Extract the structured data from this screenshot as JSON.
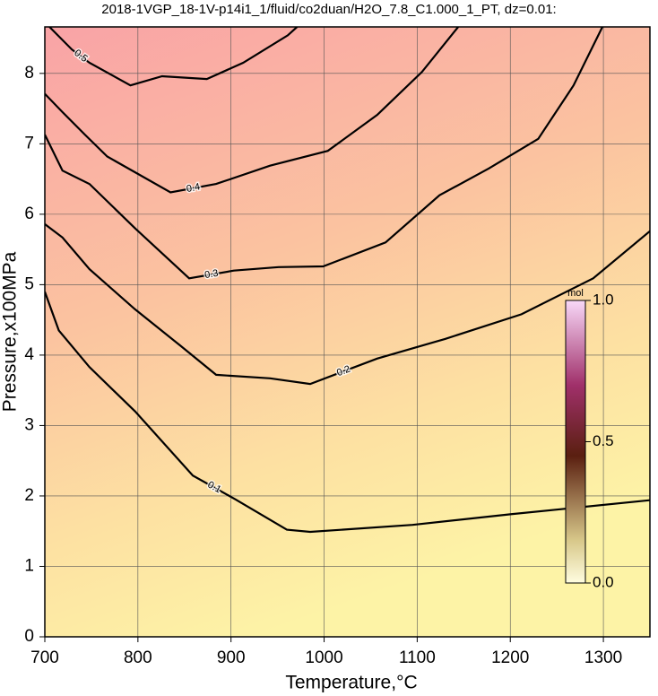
{
  "chart_data": {
    "type": "contour",
    "title": "2018-1VGP_18-1V-p14i1_1/fluid/co2duan/H2O_7.8_C1.000_1_PT, dz=0.01:",
    "x_label": "Temperature,°C",
    "y_label": "Pressure,x100MPa",
    "xlim": [
      700,
      1350
    ],
    "ylim": [
      0,
      8.66
    ],
    "xticks": [
      700,
      800,
      900,
      1000,
      1100,
      1200,
      1300
    ],
    "yticks": [
      0,
      1,
      2,
      3,
      4,
      5,
      6,
      7,
      8
    ],
    "grid": true,
    "contours": [
      {
        "level": 0.1,
        "x": [
          700,
          715,
          748,
          797,
          859,
          905,
          960,
          985,
          1095,
          1200,
          1350
        ],
        "y": [
          4.9,
          4.35,
          3.83,
          3.2,
          2.29,
          1.95,
          1.52,
          1.49,
          1.59,
          1.74,
          1.94
        ]
      },
      {
        "level": 0.2,
        "x": [
          700,
          719,
          748,
          797,
          845,
          884,
          942,
          985,
          1057,
          1130,
          1212,
          1289,
          1350
        ],
        "y": [
          5.86,
          5.67,
          5.22,
          4.65,
          4.14,
          3.72,
          3.67,
          3.59,
          3.95,
          4.23,
          4.58,
          5.09,
          5.76
        ]
      },
      {
        "level": 0.3,
        "x": [
          700,
          719,
          748,
          797,
          855,
          903,
          951,
          999,
          1066,
          1124,
          1177,
          1230,
          1268,
          1299
        ],
        "y": [
          7.13,
          6.62,
          6.43,
          5.8,
          5.09,
          5.2,
          5.25,
          5.26,
          5.6,
          6.27,
          6.65,
          7.07,
          7.83,
          8.66
        ]
      },
      {
        "level": 0.4,
        "x": [
          700,
          719,
          743,
          767,
          835,
          884,
          942,
          1004,
          1057,
          1105,
          1144
        ],
        "y": [
          7.71,
          7.45,
          7.13,
          6.82,
          6.31,
          6.43,
          6.69,
          6.9,
          7.41,
          8.02,
          8.66
        ]
      },
      {
        "level": 0.5,
        "x": [
          705,
          729,
          748,
          792,
          826,
          874,
          913,
          961,
          971
        ],
        "y": [
          8.66,
          8.34,
          8.15,
          7.83,
          7.96,
          7.92,
          8.15,
          8.54,
          8.66
        ]
      }
    ],
    "colorbar": {
      "label": "mol",
      "lim": [
        0,
        1
      ],
      "ticks": [
        {
          "value": 0,
          "label": "0.0"
        },
        {
          "value": 0.5,
          "label": "0.5"
        },
        {
          "value": 1,
          "label": "1.0"
        }
      ]
    }
  }
}
